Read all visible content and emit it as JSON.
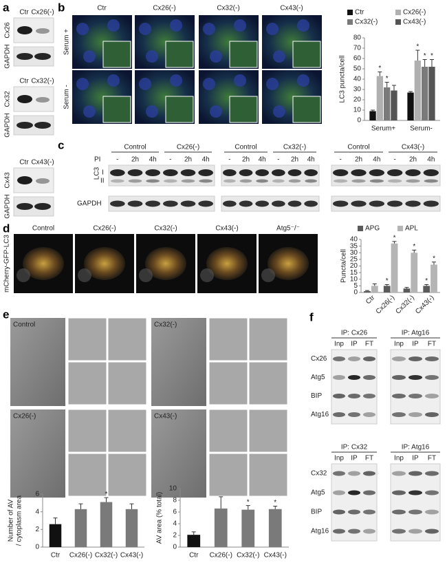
{
  "panel_labels": [
    "a",
    "b",
    "c",
    "d",
    "e",
    "f"
  ],
  "panel_a": {
    "groups": [
      {
        "columns": [
          "Ctr",
          "Cx26(-)"
        ],
        "rows": [
          "Cx26",
          "GAPDH"
        ]
      },
      {
        "columns": [
          "Ctr",
          "Cx32(-)"
        ],
        "rows": [
          "Cx32",
          "GAPDH"
        ]
      },
      {
        "columns": [
          "Ctr",
          "Cx43(-)"
        ],
        "rows": [
          "Cx43",
          "GAPDH"
        ]
      }
    ]
  },
  "panel_b": {
    "columns": [
      "Ctr",
      "Cx26(-)",
      "Cx32(-)",
      "Cx43(-)"
    ],
    "rows": [
      "Serum +",
      "Serum -"
    ]
  },
  "panel_c": {
    "groups": [
      {
        "conditions": [
          "Control",
          "Cx26(-)"
        ]
      },
      {
        "conditions": [
          "Control",
          "Cx32(-)"
        ]
      },
      {
        "conditions": [
          "Control",
          "Cx43(-)"
        ]
      }
    ],
    "pi_label": "PI",
    "pi_steps": [
      "-",
      "2h",
      "4h"
    ],
    "rows": [
      "LC3",
      "GAPDH"
    ],
    "bands": [
      "I",
      "II"
    ]
  },
  "panel_d": {
    "columns": [
      "Control",
      "Cx26(-)",
      "Cx32(-)",
      "Cx43(-)",
      "Atg5⁻/⁻"
    ],
    "row_label": "mCherry-GFP-LC3"
  },
  "panel_e": {
    "images": [
      "Control",
      "Cx32(-)",
      "Cx26(-)",
      "Cx43(-)"
    ]
  },
  "panel_f": {
    "groups": [
      {
        "ips": [
          "IP: Cx26",
          "IP: Atg16"
        ],
        "lanes": [
          "Inp",
          "IP",
          "FT"
        ],
        "rows": [
          "Cx26",
          "Atg5",
          "BIP",
          "Atg16"
        ]
      },
      {
        "ips": [
          "IP: Cx32",
          "IP: Atg16"
        ],
        "lanes": [
          "Inp",
          "IP",
          "FT"
        ],
        "rows": [
          "Cx32",
          "Atg5",
          "BIP",
          "Atg16"
        ]
      }
    ]
  },
  "chart_data": [
    {
      "type": "bar",
      "y_label": [
        "LC3 puncta/cell"
      ],
      "categories": [
        "Serum+",
        "Serum-"
      ],
      "legend": "top",
      "series": [
        {
          "name": "Ctr",
          "color": "#111111",
          "values": [
            9,
            27
          ],
          "errors": [
            1,
            1
          ],
          "annotations": [
            null,
            null
          ]
        },
        {
          "name": "Cx26(-)",
          "color": "#b0b0b0",
          "values": [
            43,
            58
          ],
          "errors": [
            4,
            10
          ],
          "annotations": [
            "*",
            "*"
          ]
        },
        {
          "name": "Cx32(-)",
          "color": "#7a7a7a",
          "values": [
            32,
            52
          ],
          "errors": [
            5,
            7
          ],
          "annotations": [
            "*",
            "*"
          ]
        },
        {
          "name": "Cx43(-)",
          "color": "#555555",
          "values": [
            29,
            52
          ],
          "errors": [
            5,
            7
          ],
          "annotations": [
            null,
            "*"
          ]
        }
      ],
      "ylim": [
        0,
        80
      ],
      "yticks": [
        0,
        10,
        20,
        30,
        40,
        50,
        60,
        70,
        80
      ]
    },
    {
      "type": "bar",
      "y_label": [
        "Puncta/cell"
      ],
      "categories": [
        "Ctr",
        "Cx26(-)",
        "Cx32(-)",
        "Cx43(-)"
      ],
      "legend": "top",
      "series": [
        {
          "name": "APG",
          "color": "#5a5a5a",
          "values": [
            1,
            5,
            3,
            5
          ],
          "errors": [
            0.5,
            1,
            0.8,
            1
          ],
          "annotations": [
            null,
            "*",
            null,
            "*"
          ]
        },
        {
          "name": "APL",
          "color": "#b5b5b5",
          "values": [
            5,
            37,
            30,
            21
          ],
          "errors": [
            1.5,
            1.5,
            2,
            2
          ],
          "annotations": [
            null,
            "*",
            "*",
            "*"
          ]
        }
      ],
      "ylim": [
        0,
        40
      ],
      "yticks": [
        0,
        5,
        10,
        15,
        20,
        25,
        30,
        35,
        40
      ]
    },
    {
      "type": "bar",
      "y_label": [
        "Number of AV",
        "/ cytoplasm area"
      ],
      "categories": [
        "Ctr",
        "Cx26(-)",
        "Cx32(-)",
        "Cx43(-)"
      ],
      "values": [
        2.6,
        4.3,
        5.1,
        4.3
      ],
      "errors": [
        0.7,
        0.6,
        0.5,
        0.6
      ],
      "annotations": [
        null,
        null,
        "*",
        null
      ],
      "colors": [
        "#111111",
        "#7a7a7a",
        "#7a7a7a",
        "#7a7a7a"
      ],
      "ylim": [
        0,
        6
      ],
      "yticks": [
        0,
        2,
        4,
        6
      ]
    },
    {
      "type": "bar",
      "y_label": [
        "AV area (% total)"
      ],
      "categories": [
        "Ctr",
        "Cx26(-)",
        "Cx32(-)",
        "Cx43(-)"
      ],
      "values": [
        2.1,
        6.6,
        6.4,
        6.5
      ],
      "errors": [
        0.5,
        2,
        0.7,
        0.5
      ],
      "annotations": [
        null,
        null,
        "*",
        "*"
      ],
      "colors": [
        "#111111",
        "#7a7a7a",
        "#7a7a7a",
        "#7a7a7a"
      ],
      "ylim": [
        0,
        10
      ],
      "yticks": [
        0,
        2,
        4,
        6,
        8,
        10
      ]
    }
  ]
}
